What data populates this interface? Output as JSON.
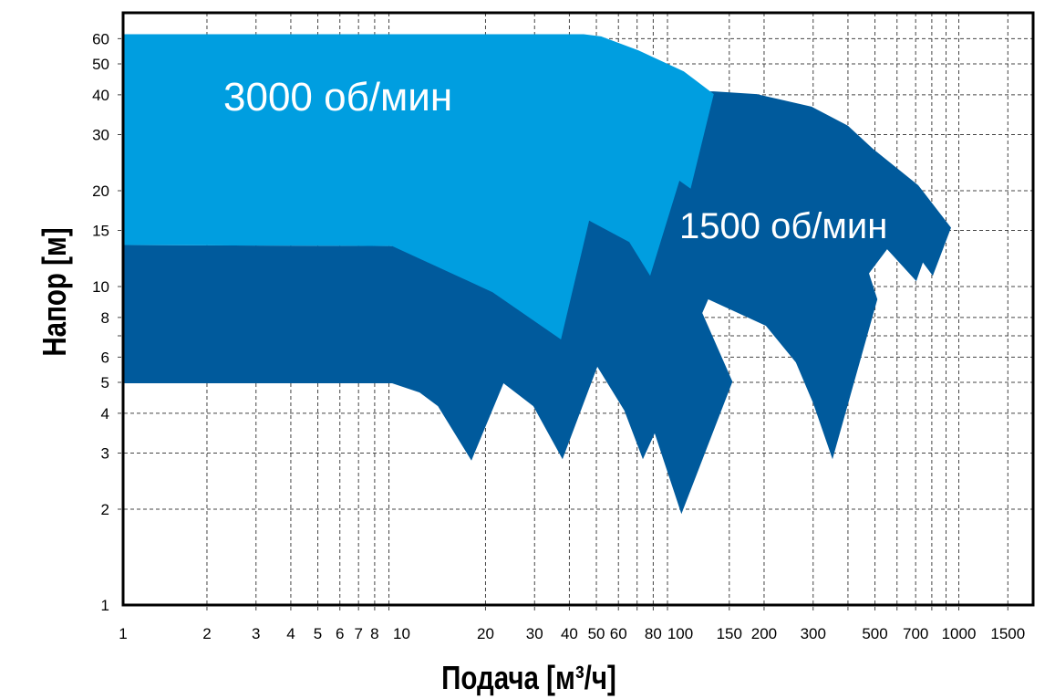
{
  "chart_data": {
    "type": "area",
    "xlabel": "Подача [м³/ч]",
    "ylabel": "Напор [м]",
    "x_scale": "log",
    "y_scale": "log",
    "xlim": [
      1,
      1850
    ],
    "ylim": [
      1,
      72
    ],
    "grid": true,
    "x_ticks": [
      "1",
      "2",
      "3",
      "4",
      "5",
      "6",
      "7",
      "8",
      "10",
      "20",
      "30",
      "40",
      "50",
      "60",
      "80",
      "100",
      "150",
      "200",
      "300",
      "500",
      "700",
      "1000",
      "1500"
    ],
    "x_tick_values": [
      1,
      2,
      3,
      4,
      5,
      6,
      7,
      8,
      10,
      20,
      30,
      40,
      50,
      60,
      80,
      100,
      150,
      200,
      300,
      500,
      700,
      1000,
      1500
    ],
    "y_ticks": [
      "1",
      "2",
      "3",
      "4",
      "5",
      "6",
      "8",
      "10",
      "15",
      "20",
      "30",
      "40",
      "50",
      "60"
    ],
    "y_tick_values": [
      1,
      2,
      3,
      4,
      5,
      6,
      8,
      10,
      15,
      20,
      30,
      40,
      50,
      60
    ],
    "colors": {
      "rpm3000": "#009EE0",
      "rpm1500": "#005A9C"
    },
    "series": [
      {
        "name": "1500 об/мин",
        "label": "1500 об/мин",
        "color": "#005A9C",
        "polygon": [
          [
            1,
            13.5
          ],
          [
            9.24,
            13.4
          ],
          [
            70.7,
            41
          ],
          [
            132,
            41
          ],
          [
            188,
            40.2
          ],
          [
            296,
            36.7
          ],
          [
            400,
            32
          ],
          [
            491,
            27.1
          ],
          [
            715,
            20.8
          ],
          [
            938,
            15.3
          ],
          [
            807,
            10.8
          ],
          [
            743,
            11.9
          ],
          [
            704,
            10.4
          ],
          [
            553,
            13.1
          ],
          [
            476,
            11.0
          ],
          [
            510,
            9.12
          ],
          [
            352,
            2.87
          ],
          [
            300,
            4.3
          ],
          [
            260,
            5.78
          ],
          [
            203,
            7.53
          ],
          [
            126,
            9.12
          ],
          [
            120,
            8.26
          ],
          [
            154,
            5.03
          ],
          [
            101,
            1.93
          ],
          [
            81,
            3.46
          ],
          [
            73.4,
            2.87
          ],
          [
            63,
            4.08
          ],
          [
            50.4,
            5.6
          ],
          [
            37.8,
            2.87
          ],
          [
            29.7,
            4.21
          ],
          [
            23.2,
            4.97
          ],
          [
            17.8,
            2.84
          ],
          [
            13.5,
            4.21
          ],
          [
            11.6,
            4.65
          ],
          [
            9.24,
            4.97
          ],
          [
            1,
            4.97
          ]
        ]
      },
      {
        "name": "3000 об/мин",
        "label": "3000 об/мин",
        "color": "#009EE0",
        "polygon": [
          [
            1,
            62
          ],
          [
            45,
            62
          ],
          [
            52,
            61
          ],
          [
            70.7,
            55.2
          ],
          [
            103,
            47.4
          ],
          [
            132,
            40.2
          ],
          [
            109,
            20.3
          ],
          [
            99.3,
            21.5
          ],
          [
            78,
            10.8
          ],
          [
            65.6,
            13.8
          ],
          [
            47.1,
            16.1
          ],
          [
            37.3,
            6.82
          ],
          [
            21.2,
            9.6
          ],
          [
            9.24,
            13.4
          ],
          [
            1,
            13.5
          ]
        ]
      }
    ]
  }
}
